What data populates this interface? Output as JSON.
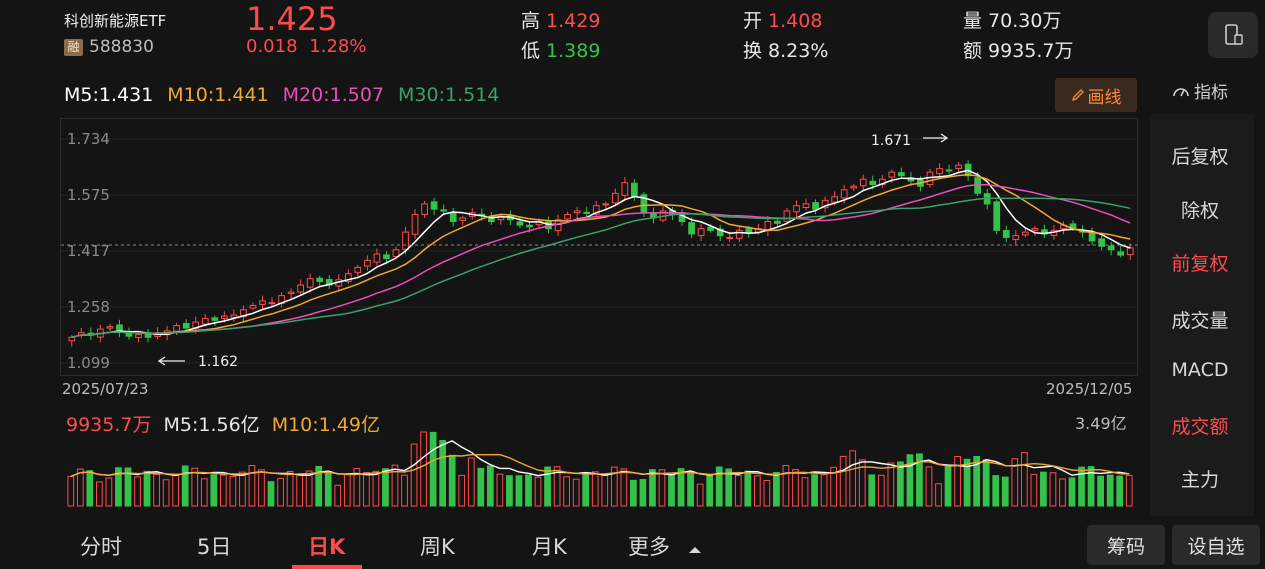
{
  "header": {
    "name": "科创新能源ETF",
    "badge": "融",
    "code": "588830",
    "price": "1.425",
    "change": "0.018",
    "change_pct": "1.28%",
    "high_label": "高",
    "high": "1.429",
    "low_label": "低",
    "low": "1.389",
    "open_label": "开",
    "open": "1.408",
    "turnover_label": "换",
    "turnover": "8.23%",
    "volume_label": "量",
    "volume": "70.30万",
    "amount_label": "额",
    "amount": "9935.7万"
  },
  "ma": {
    "m5": "M5:1.431",
    "m10": "M10:1.441",
    "m20": "M20:1.507",
    "m30": "M30:1.514"
  },
  "toolbar": {
    "draw_label": "画线",
    "indicator_label": "指标"
  },
  "chart": {
    "y_ticks": [
      "1.734",
      "1.575",
      "1.417",
      "1.258",
      "1.099"
    ],
    "date_start": "2025/07/23",
    "date_end": "2025/12/05",
    "high_annotation": "1.671",
    "low_annotation": "1.162"
  },
  "volume": {
    "amount": "9935.7万",
    "m5": "M5:1.56亿",
    "m10": "M10:1.49亿",
    "max": "3.49亿"
  },
  "sidebar": {
    "items": [
      {
        "label": "后复权",
        "active": false
      },
      {
        "label": "除权",
        "active": false
      },
      {
        "label": "前复权",
        "active": true
      },
      {
        "label": "成交量",
        "active": false
      },
      {
        "label": "MACD",
        "active": false
      },
      {
        "label": "成交额",
        "active": true
      },
      {
        "label": "主力",
        "active": false
      }
    ]
  },
  "tabs": [
    "分时",
    "5日",
    "日K",
    "周K",
    "月K",
    "更多"
  ],
  "active_tab": "日K",
  "buttons": {
    "chips": "筹码",
    "add_watch": "设自选"
  },
  "colors": {
    "up": "#ff4b4b",
    "down": "#35c24a",
    "ma5": "#ffffff",
    "ma10": "#f0a830",
    "ma20": "#e84fb8",
    "ma30": "#3aa06c"
  },
  "chart_data": {
    "type": "candlestick",
    "ylim": [
      1.099,
      1.734
    ],
    "closes": [
      1.172,
      1.185,
      1.178,
      1.195,
      1.202,
      1.188,
      1.175,
      1.18,
      1.172,
      1.185,
      1.19,
      1.205,
      1.198,
      1.215,
      1.225,
      1.22,
      1.232,
      1.235,
      1.25,
      1.262,
      1.275,
      1.27,
      1.29,
      1.3,
      1.32,
      1.338,
      1.33,
      1.32,
      1.335,
      1.352,
      1.37,
      1.39,
      1.408,
      1.395,
      1.42,
      1.47,
      1.52,
      1.55,
      1.535,
      1.53,
      1.5,
      1.51,
      1.525,
      1.518,
      1.5,
      1.515,
      1.505,
      1.49,
      1.485,
      1.5,
      1.48,
      1.505,
      1.52,
      1.53,
      1.525,
      1.545,
      1.55,
      1.58,
      1.61,
      1.57,
      1.525,
      1.51,
      1.53,
      1.52,
      1.5,
      1.465,
      1.48,
      1.475,
      1.46,
      1.455,
      1.475,
      1.47,
      1.48,
      1.5,
      1.495,
      1.53,
      1.545,
      1.55,
      1.535,
      1.56,
      1.57,
      1.59,
      1.6,
      1.62,
      1.605,
      1.62,
      1.64,
      1.63,
      1.615,
      1.6,
      1.64,
      1.65,
      1.645,
      1.66,
      1.63,
      1.58,
      1.55,
      1.475,
      1.455,
      1.46,
      1.47,
      1.48,
      1.465,
      1.475,
      1.49,
      1.48,
      1.47,
      1.445,
      1.43,
      1.42,
      1.405,
      1.425
    ]
  }
}
